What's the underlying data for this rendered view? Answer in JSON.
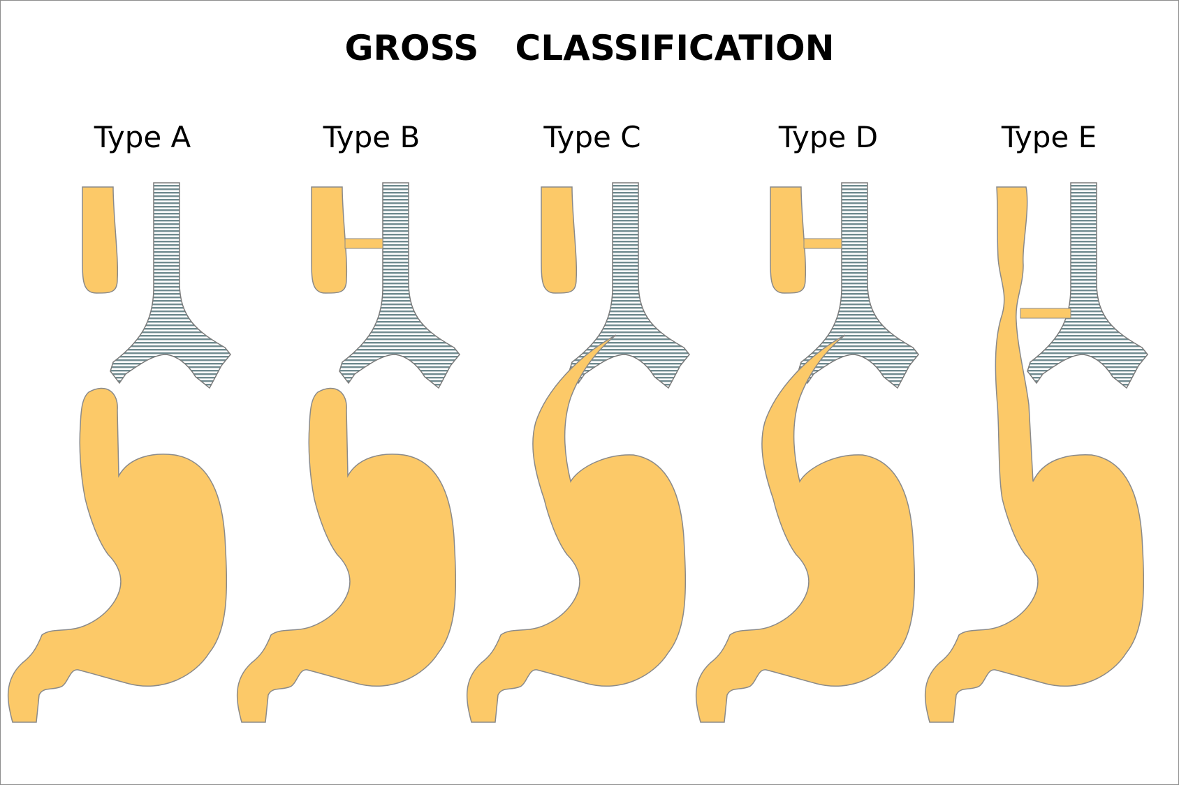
{
  "title": "GROSS   CLASSIFICATION",
  "types": [
    {
      "label": "Type A"
    },
    {
      "label": "Type B"
    },
    {
      "label": "Type C"
    },
    {
      "label": "Type D"
    },
    {
      "label": "Type E"
    }
  ],
  "colors": {
    "esophagus_stomach": "#FCC968",
    "organ_outline": "#8a8a8a",
    "trachea_stripe_light": "#ffffff",
    "trachea_stripe_dark": "#6f8a8f"
  }
}
